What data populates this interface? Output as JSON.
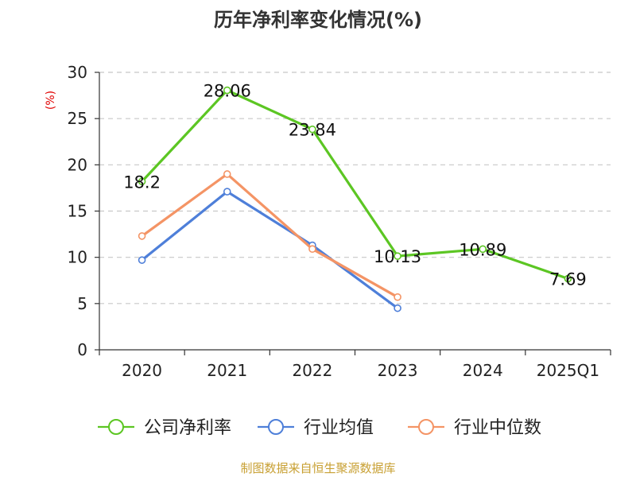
{
  "chart_data": {
    "type": "line",
    "title": "历年净利率变化情况(%)",
    "ylabel": "(%)",
    "xlabel": "",
    "categories": [
      "2020",
      "2021",
      "2022",
      "2023",
      "2024",
      "2025Q1"
    ],
    "ylim": [
      0,
      30
    ],
    "yticks": [
      0,
      5,
      10,
      15,
      20,
      25,
      30
    ],
    "grid": true,
    "legend_position": "bottom",
    "series": [
      {
        "name": "公司净利率",
        "color": "#5cc623",
        "values": [
          18.2,
          28.06,
          23.84,
          10.13,
          10.89,
          7.69
        ],
        "labels": [
          "18.2",
          "28.06",
          "23.84",
          "10.13",
          "10.89",
          "7.69"
        ]
      },
      {
        "name": "行业均值",
        "color": "#4e7fd9",
        "values": [
          9.7,
          17.1,
          11.3,
          4.5,
          null,
          null
        ]
      },
      {
        "name": "行业中位数",
        "color": "#f49465",
        "values": [
          12.3,
          19.0,
          10.9,
          5.7,
          null,
          null
        ]
      }
    ]
  },
  "footer": "制图数据来自恒生聚源数据库"
}
